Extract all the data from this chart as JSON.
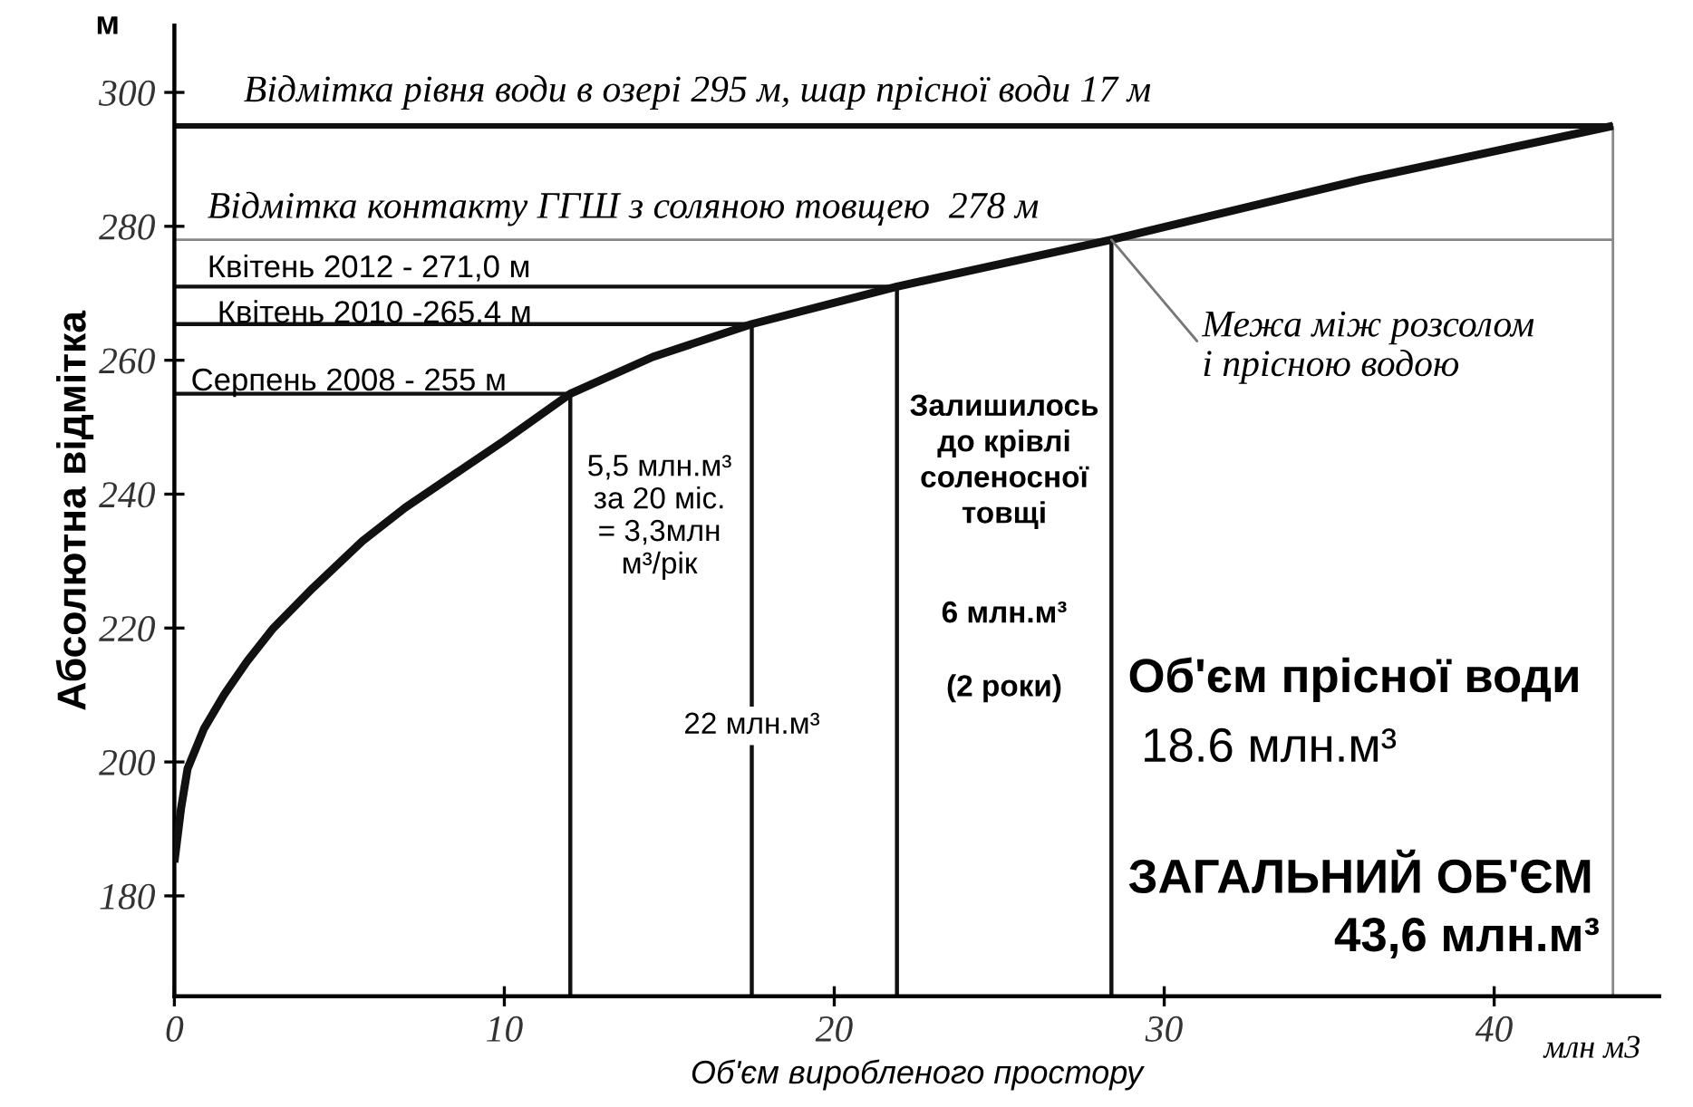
{
  "chart_data": {
    "type": "line",
    "xlabel": "Об'єм виробленого простору",
    "ylabel": "Абсолютна відмітка",
    "xlim": [
      0,
      45
    ],
    "ylim": [
      165,
      310
    ],
    "xticks": [
      0,
      10,
      20,
      30,
      40
    ],
    "yticks": [
      180,
      200,
      220,
      240,
      260,
      280,
      300
    ],
    "grid": false,
    "legend": false,
    "marker": "none",
    "line_style": "solid",
    "series": [
      {
        "color": "#111111",
        "x": [
          0,
          0.2,
          0.4,
          0.9,
          1.5,
          2.2,
          3,
          4.2,
          5.7,
          7,
          8.5,
          10,
          12,
          14.5,
          17.5,
          21.9,
          28.4,
          36,
          43.6
        ],
        "values": [
          185,
          193,
          199,
          205,
          210,
          215,
          220,
          226,
          233,
          238,
          243,
          248,
          255,
          260.5,
          265.4,
          271,
          278,
          287,
          295
        ]
      },
      {
        "color": "#111111",
        "x": [
          0,
          43.6
        ],
        "values": [
          295,
          295
        ]
      },
      {
        "color": "#888888",
        "x": [
          0,
          43.6
        ],
        "values": [
          278,
          278
        ]
      },
      {
        "color": "#111111",
        "x": [
          0,
          21.9
        ],
        "values": [
          271,
          271
        ]
      },
      {
        "color": "#111111",
        "x": [
          0,
          17.5
        ],
        "values": [
          265.4,
          265.4
        ]
      },
      {
        "color": "#111111",
        "x": [
          0,
          12
        ],
        "values": [
          255,
          255
        ]
      },
      {
        "color": "#111111",
        "x": [
          12,
          12
        ],
        "values": [
          165,
          255
        ]
      },
      {
        "color": "#111111",
        "x": [
          17.5,
          17.5
        ],
        "values": [
          165,
          265.4
        ]
      },
      {
        "color": "#111111",
        "x": [
          21.9,
          21.9
        ],
        "values": [
          165,
          271
        ]
      },
      {
        "color": "#111111",
        "x": [
          28.4,
          28.4
        ],
        "values": [
          165,
          278
        ]
      },
      {
        "color": "#888888",
        "x": [
          43.6,
          43.6
        ],
        "values": [
          165,
          295
        ]
      }
    ],
    "annotations": [
      "м",
      "Відмітка рівня води в озері 295 м, шар прісної води 17 м",
      "Відмітка контакту ГГШ з соляною товщею  278 м",
      "Квітень 2012 - 271,0 м",
      "Квітень 2010 -265.4 м",
      "Серпень 2008 - 255 м",
      "5,5 млн.м³\nза 20 міс.\n= 3,3млн\nм³/рік",
      {
        "text": "22 млн.м³",
        "x": 17.5,
        "y": 205.4
      },
      "Залишилось\nдо крівлі\nсоленосної\nтовщі",
      "6 млн.м³",
      "(2 роки)",
      {
        "text": "Межа між розсолом\nі прісною водою",
        "x": 28.4,
        "y": 278
      },
      "Об'єм прісної води",
      "18.6 млн.м³",
      "ЗАГАЛЬНИЙ ОБ'ЄМ",
      "43,6 млн.м³",
      "млн м3"
    ]
  }
}
